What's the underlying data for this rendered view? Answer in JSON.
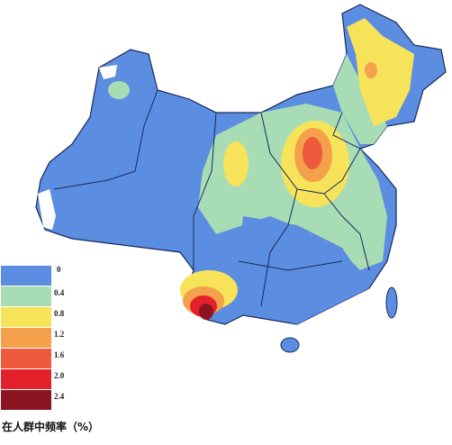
{
  "legend": {
    "items": [
      "0",
      "0.4",
      "0.8",
      "1.2",
      "1.6",
      "2.0",
      "2.4"
    ],
    "caption": "在人群中频率（%）"
  }
}
